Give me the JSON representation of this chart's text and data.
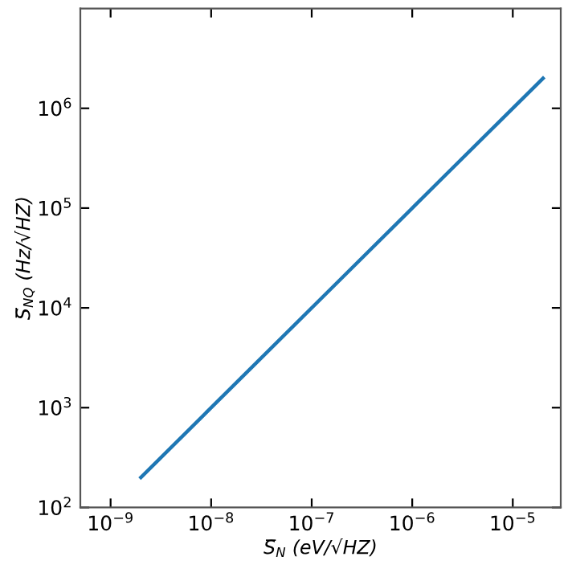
{
  "chart_data": {
    "type": "line",
    "xlabel": "S̅$_{N}$ (eV/√HZ)",
    "ylabel": "S̅$_{NQ}$ (Hz/√HZ)",
    "x": [
      2e-09,
      2e-08,
      2e-07,
      2e-06,
      2e-05
    ],
    "series": [
      {
        "color": "#1f77b4",
        "values": [
          200,
          2000,
          20000,
          200000,
          2000000
        ]
      }
    ],
    "log": "xy",
    "xlim": [
      5e-10,
      3e-05
    ],
    "ylim": [
      100,
      10000000.0
    ],
    "xticks": [
      {
        "value": 1e-09,
        "label": "10$^{−9}$"
      },
      {
        "value": 1e-08,
        "label": "10$^{−8}$"
      },
      {
        "value": 1e-07,
        "label": "10$^{−7}$"
      },
      {
        "value": 1e-06,
        "label": "10$^{−6}$"
      },
      {
        "value": 1e-05,
        "label": "10$^{−5}$"
      }
    ],
    "yticks": [
      {
        "value": 100,
        "label": "10$^{2}$"
      },
      {
        "value": 1000,
        "label": "10$^{3}$"
      },
      {
        "value": 10000,
        "label": "10$^{4}$"
      },
      {
        "value": 100000,
        "label": "10$^{5}$"
      },
      {
        "value": 1000000,
        "label": "10$^{6}$"
      }
    ],
    "grid": false,
    "marker": "none",
    "line_style": "solid"
  }
}
